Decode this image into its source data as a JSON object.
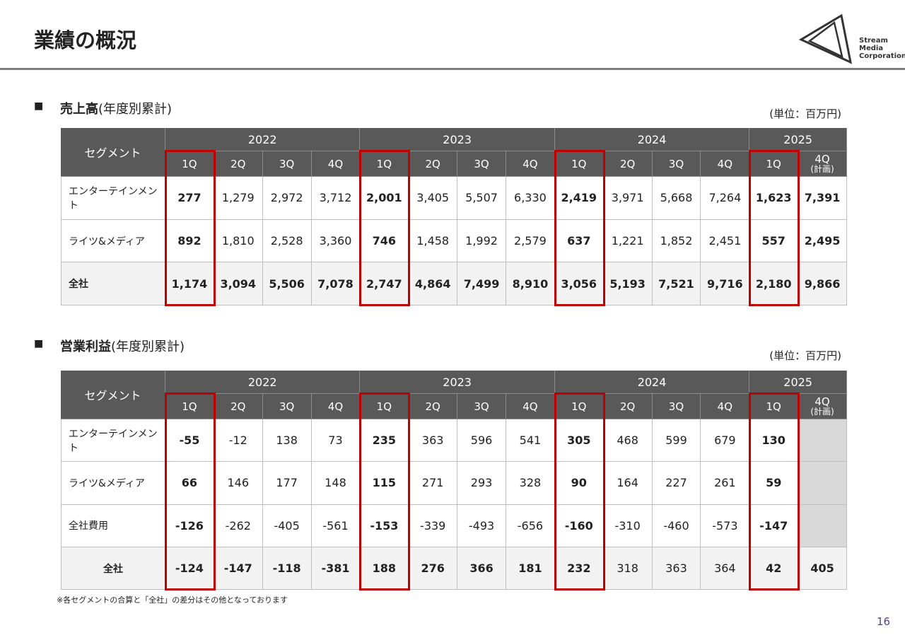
{
  "header": {
    "title": "業績の概況",
    "logo": [
      "Stream",
      "Media",
      "Corporation"
    ]
  },
  "sections": [
    {
      "heading_bold": "売上高",
      "heading_rest": "(年度別累計)",
      "unit": "(単位：百万円)",
      "table": {
        "segment_header": "セグメント",
        "years": [
          "2022",
          "2023",
          "2024",
          "2025"
        ],
        "quarters": [
          "1Q",
          "2Q",
          "3Q",
          "4Q",
          "1Q",
          "2Q",
          "3Q",
          "4Q",
          "1Q",
          "2Q",
          "3Q",
          "4Q",
          "1Q",
          "4Q"
        ],
        "plan_note": "(計画)",
        "rows": [
          {
            "label": "エンターテインメント",
            "cells": [
              "277",
              "1,279",
              "2,972",
              "3,712",
              "2,001",
              "3,405",
              "5,507",
              "6,330",
              "2,419",
              "3,971",
              "5,668",
              "7,264",
              "1,623",
              "7,391"
            ]
          },
          {
            "label": "ライツ&メディア",
            "cells": [
              "892",
              "1,810",
              "2,528",
              "3,360",
              "746",
              "1,458",
              "1,992",
              "2,579",
              "637",
              "1,221",
              "1,852",
              "2,451",
              "557",
              "2,495"
            ]
          },
          {
            "label": "全社",
            "cells": [
              "1,174",
              "3,094",
              "5,506",
              "7,078",
              "2,747",
              "4,864",
              "7,499",
              "8,910",
              "3,056",
              "5,193",
              "7,521",
              "9,716",
              "2,180",
              "9,866"
            ]
          }
        ]
      }
    },
    {
      "heading_bold": "営業利益",
      "heading_rest": "(年度別累計)",
      "unit": "(単位：百万円)",
      "table": {
        "segment_header": "セグメント",
        "years": [
          "2022",
          "2023",
          "2024",
          "2025"
        ],
        "quarters": [
          "1Q",
          "2Q",
          "3Q",
          "4Q",
          "1Q",
          "2Q",
          "3Q",
          "4Q",
          "1Q",
          "2Q",
          "3Q",
          "4Q",
          "1Q",
          "4Q"
        ],
        "plan_note": "(計画)",
        "rows": [
          {
            "label": "エンターテインメント",
            "cells": [
              "-55",
              "-12",
              "138",
              "73",
              "235",
              "363",
              "596",
              "541",
              "305",
              "468",
              "599",
              "679",
              "130",
              null
            ]
          },
          {
            "label": "ライツ&メディア",
            "cells": [
              "66",
              "146",
              "177",
              "148",
              "115",
              "271",
              "293",
              "328",
              "90",
              "164",
              "227",
              "261",
              "59",
              null
            ]
          },
          {
            "label": "全社費用",
            "cells": [
              "-126",
              "-262",
              "-405",
              "-561",
              "-153",
              "-339",
              "-493",
              "-656",
              "-160",
              "-310",
              "-460",
              "-573",
              "-147",
              null
            ]
          },
          {
            "label": "全社",
            "cells": [
              "-124",
              "-147",
              "-118",
              "-381",
              "188",
              "276",
              "366",
              "181",
              "232",
              "318",
              "363",
              "364",
              "42",
              "405"
            ]
          }
        ]
      }
    }
  ],
  "footnote": "※各セグメントの合算と「全社」の差分はその他となっております",
  "page_number": "16"
}
